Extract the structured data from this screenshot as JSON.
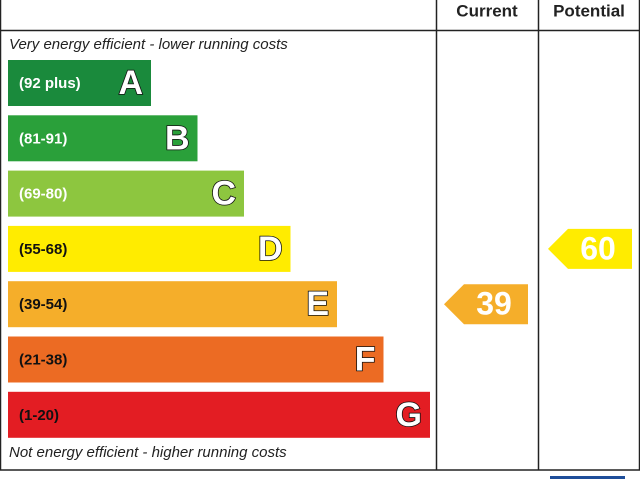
{
  "header": {
    "current": "Current",
    "potential": "Potential"
  },
  "top_note": "Very energy efficient - lower running costs",
  "bottom_note": "Not energy efficient - higher running costs",
  "bands": [
    {
      "range": "(92 plus)",
      "letter": "A",
      "color": "#1a8a3c"
    },
    {
      "range": "(81-91)",
      "letter": "B",
      "color": "#2aa03a"
    },
    {
      "range": "(69-80)",
      "letter": "C",
      "color": "#8dc63f"
    },
    {
      "range": "(55-68)",
      "letter": "D",
      "color": "#ffec00"
    },
    {
      "range": "(39-54)",
      "letter": "E",
      "color": "#f5ae2a"
    },
    {
      "range": "(21-38)",
      "letter": "F",
      "color": "#ec6b23"
    },
    {
      "range": "(1-20)",
      "letter": "G",
      "color": "#e31d23"
    }
  ],
  "current": 39,
  "potential": 60
}
